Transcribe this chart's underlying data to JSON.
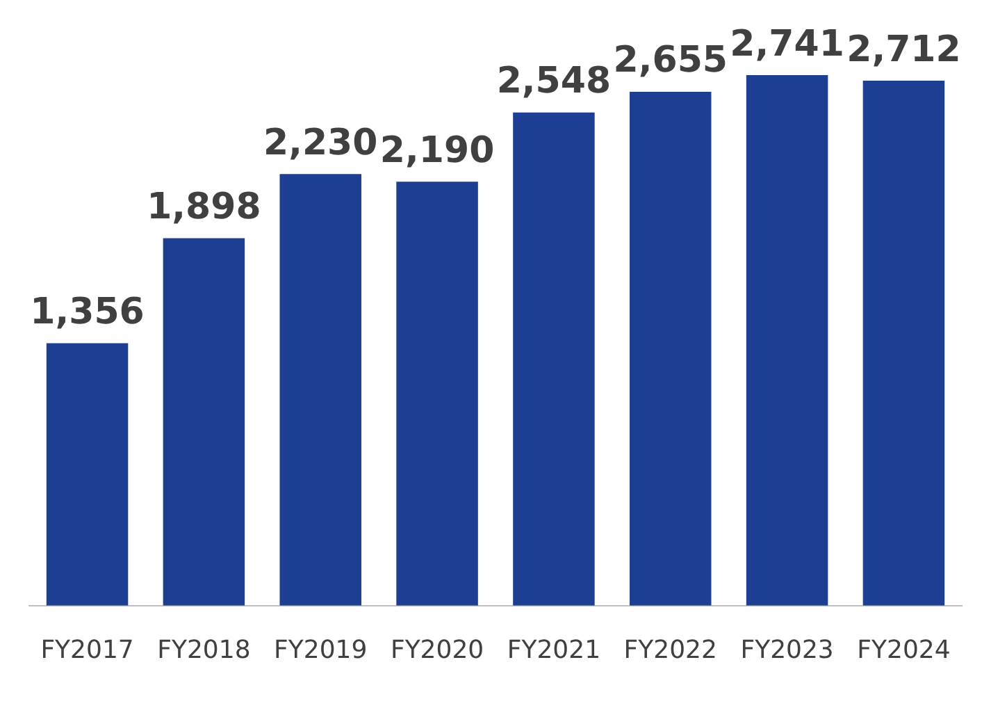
{
  "chart_data": {
    "type": "bar",
    "categories": [
      "FY2017",
      "FY2018",
      "FY2019",
      "FY2020",
      "FY2021",
      "FY2022",
      "FY2023",
      "FY2024"
    ],
    "values": [
      1356,
      1898,
      2230,
      2190,
      2548,
      2655,
      2741,
      2712
    ],
    "value_labels": [
      "1,356",
      "1,898",
      "2,230",
      "2,190",
      "2,548",
      "2,655",
      "2,741",
      "2,712"
    ],
    "color": "#1c3f94",
    "grid": false,
    "legend": false
  }
}
